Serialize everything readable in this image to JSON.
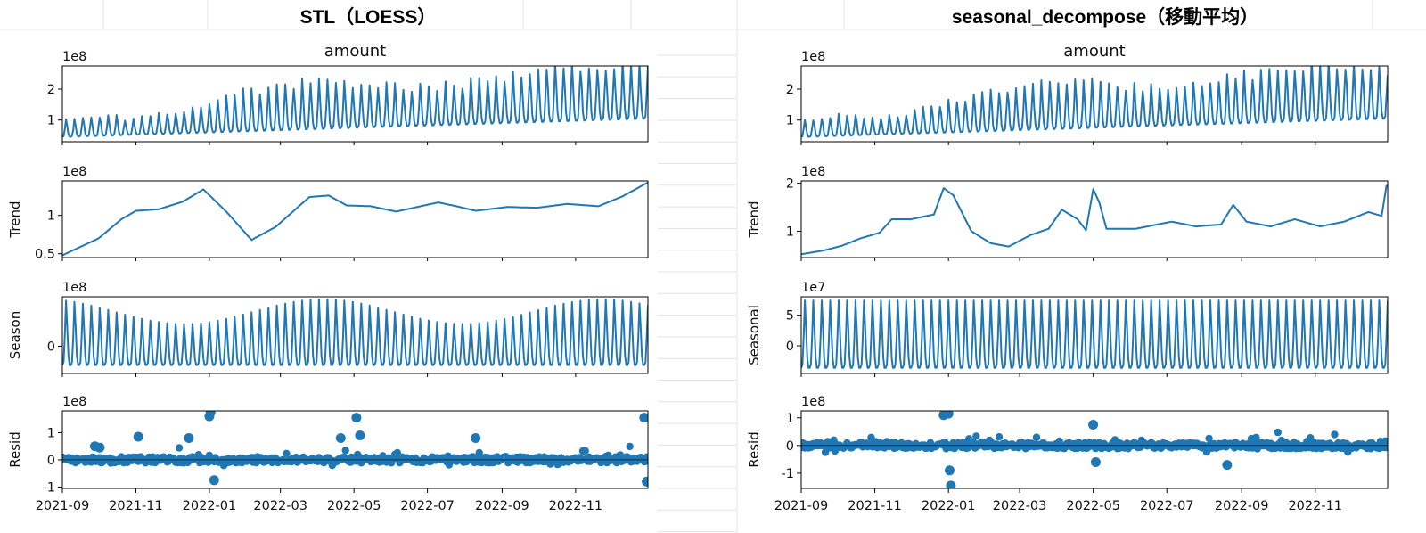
{
  "headers": [
    "STL（LOESS）",
    "seasonal_decompose（移動平均）"
  ],
  "colors": {
    "series": "#1f77b4",
    "sheet_grid": "#e3e3e3"
  },
  "x_ticks": [
    "2021-09",
    "2021-11",
    "2022-01",
    "2022-03",
    "2022-05",
    "2022-07",
    "2022-09",
    "2022-11"
  ],
  "chart_data": [
    {
      "type": "line",
      "panel": "STL（LOESS）",
      "x_range": [
        "2021-09-01",
        "2022-12-31"
      ],
      "subplots": [
        {
          "title": "amount",
          "ylabel": "",
          "offset": "1e8",
          "kind": "line",
          "yticks": [
            1,
            2
          ],
          "ylim": [
            0.3,
            2.75
          ],
          "approx": {
            "base_start": 0.45,
            "base_end": 1.05,
            "peak_start": 1.0,
            "peak_mid": 2.2,
            "peak_end": 2.7,
            "period_days": 7
          }
        },
        {
          "title": "",
          "ylabel": "Trend",
          "offset": "1e8",
          "kind": "line",
          "yticks": [
            0.5,
            1.0
          ],
          "ylim": [
            0.45,
            1.45
          ],
          "points": [
            [
              "2021-09-01",
              0.48
            ],
            [
              "2021-10-01",
              0.7
            ],
            [
              "2021-10-20",
              0.95
            ],
            [
              "2021-11-01",
              1.06
            ],
            [
              "2021-11-20",
              1.08
            ],
            [
              "2021-12-10",
              1.18
            ],
            [
              "2021-12-27",
              1.34
            ],
            [
              "2022-01-15",
              1.05
            ],
            [
              "2022-02-05",
              0.68
            ],
            [
              "2022-02-25",
              0.85
            ],
            [
              "2022-03-25",
              1.24
            ],
            [
              "2022-04-10",
              1.26
            ],
            [
              "2022-04-25",
              1.13
            ],
            [
              "2022-05-15",
              1.12
            ],
            [
              "2022-06-05",
              1.05
            ],
            [
              "2022-07-10",
              1.17
            ],
            [
              "2022-07-25",
              1.12
            ],
            [
              "2022-08-10",
              1.06
            ],
            [
              "2022-09-05",
              1.11
            ],
            [
              "2022-09-30",
              1.1
            ],
            [
              "2022-10-25",
              1.15
            ],
            [
              "2022-11-20",
              1.12
            ],
            [
              "2022-12-10",
              1.25
            ],
            [
              "2022-12-31",
              1.43
            ]
          ]
        },
        {
          "title": "",
          "ylabel": "Season",
          "offset": "1e8",
          "kind": "line",
          "yticks": [
            0
          ],
          "ylim": [
            -0.55,
            1.0
          ],
          "approx": {
            "trough": -0.38,
            "amplitude_range": [
              0.45,
              0.95
            ],
            "period_days": 7
          }
        },
        {
          "title": "",
          "ylabel": "Resid",
          "offset": "1e8",
          "kind": "scatter",
          "yticks": [
            -1,
            0,
            1
          ],
          "ylim": [
            -1.05,
            1.8
          ],
          "outliers": [
            [
              "2021-09-28",
              0.5
            ],
            [
              "2021-10-02",
              0.45
            ],
            [
              "2021-11-03",
              0.85
            ],
            [
              "2021-12-15",
              0.8
            ],
            [
              "2022-01-01",
              1.6
            ],
            [
              "2022-01-02",
              1.75
            ],
            [
              "2022-01-05",
              -0.75
            ],
            [
              "2022-04-20",
              0.8
            ],
            [
              "2022-05-03",
              1.55
            ],
            [
              "2022-05-06",
              0.9
            ],
            [
              "2022-08-10",
              0.8
            ],
            [
              "2022-12-28",
              1.55
            ],
            [
              "2022-12-30",
              -0.8
            ]
          ]
        }
      ]
    },
    {
      "type": "line",
      "panel": "seasonal_decompose（移動平均）",
      "x_range": [
        "2021-09-01",
        "2022-12-31"
      ],
      "subplots": [
        {
          "title": "amount",
          "ylabel": "",
          "offset": "1e8",
          "kind": "line",
          "yticks": [
            1,
            2
          ],
          "ylim": [
            0.3,
            2.75
          ],
          "approx": {
            "base_start": 0.45,
            "base_end": 1.05,
            "peak_start": 1.0,
            "peak_mid": 2.2,
            "peak_end": 2.7,
            "period_days": 7
          }
        },
        {
          "title": "",
          "ylabel": "Trend",
          "offset": "1e8",
          "kind": "line",
          "yticks": [
            1,
            2
          ],
          "ylim": [
            0.45,
            2.05
          ],
          "points": [
            [
              "2021-09-01",
              0.52
            ],
            [
              "2021-09-20",
              0.6
            ],
            [
              "2021-10-05",
              0.7
            ],
            [
              "2021-10-20",
              0.85
            ],
            [
              "2021-11-05",
              0.97
            ],
            [
              "2021-11-15",
              1.25
            ],
            [
              "2021-12-01",
              1.25
            ],
            [
              "2021-12-20",
              1.35
            ],
            [
              "2021-12-28",
              1.9
            ],
            [
              "2022-01-05",
              1.75
            ],
            [
              "2022-01-20",
              1.0
            ],
            [
              "2022-02-05",
              0.75
            ],
            [
              "2022-02-20",
              0.68
            ],
            [
              "2022-03-10",
              0.92
            ],
            [
              "2022-03-25",
              1.05
            ],
            [
              "2022-04-05",
              1.45
            ],
            [
              "2022-04-18",
              1.25
            ],
            [
              "2022-04-25",
              1.02
            ],
            [
              "2022-05-01",
              1.88
            ],
            [
              "2022-05-06",
              1.6
            ],
            [
              "2022-05-12",
              1.05
            ],
            [
              "2022-06-05",
              1.05
            ],
            [
              "2022-07-05",
              1.2
            ],
            [
              "2022-07-25",
              1.1
            ],
            [
              "2022-08-15",
              1.14
            ],
            [
              "2022-08-25",
              1.55
            ],
            [
              "2022-09-05",
              1.2
            ],
            [
              "2022-09-25",
              1.1
            ],
            [
              "2022-10-15",
              1.25
            ],
            [
              "2022-11-05",
              1.1
            ],
            [
              "2022-11-25",
              1.2
            ],
            [
              "2022-12-15",
              1.4
            ],
            [
              "2022-12-26",
              1.32
            ],
            [
              "2022-12-30",
              1.95
            ]
          ]
        },
        {
          "title": "",
          "ylabel": "Seasonal",
          "offset": "1e7",
          "kind": "line",
          "yticks": [
            0,
            5
          ],
          "ylim": [
            -4.5,
            8.0
          ],
          "approx": {
            "trough": -3.6,
            "peak": 7.4,
            "period_days": 7
          }
        },
        {
          "title": "",
          "ylabel": "Resid",
          "offset": "1e8",
          "kind": "scatter",
          "yticks": [
            -1,
            0,
            1
          ],
          "ylim": [
            -1.55,
            1.25
          ],
          "outliers": [
            [
              "2021-12-28",
              1.1
            ],
            [
              "2022-01-01",
              1.15
            ],
            [
              "2022-01-02",
              -0.9
            ],
            [
              "2022-01-03",
              -1.45
            ],
            [
              "2022-05-01",
              0.75
            ],
            [
              "2022-05-03",
              -0.6
            ],
            [
              "2022-08-20",
              -0.7
            ]
          ]
        }
      ]
    }
  ]
}
